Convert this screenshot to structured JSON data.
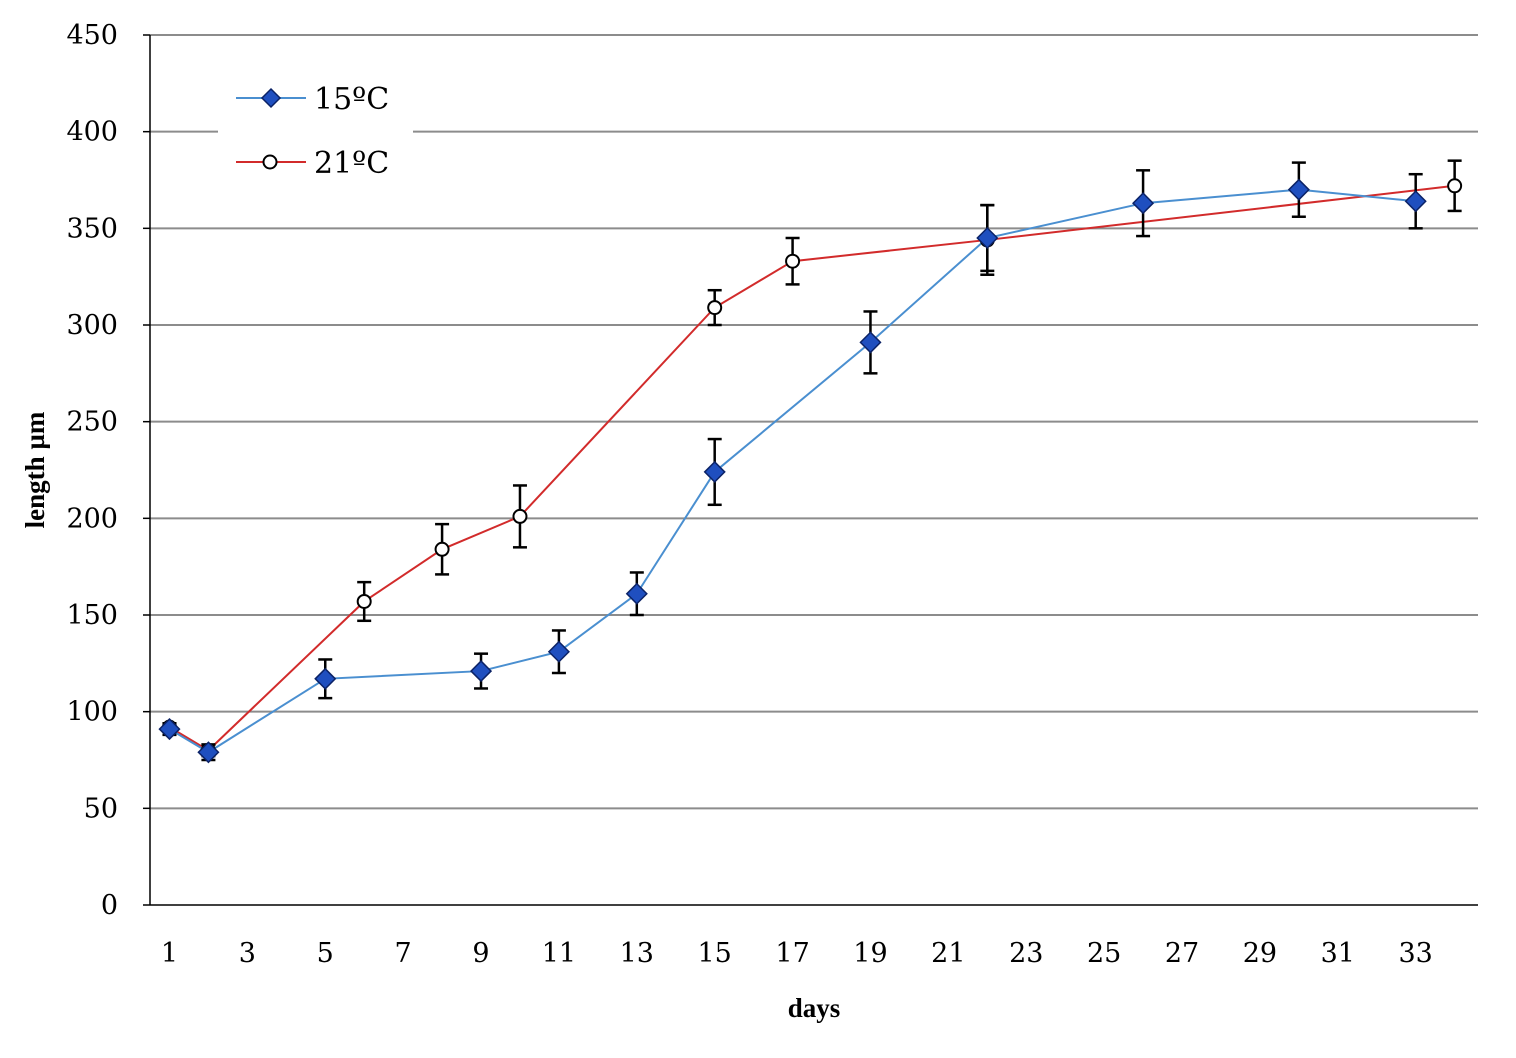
{
  "chart_data": {
    "type": "line",
    "title": "",
    "xlabel": "days",
    "ylabel": "length µm",
    "x_ticks": [
      "1",
      "3",
      "5",
      "7",
      "9",
      "11",
      "13",
      "15",
      "17",
      "19",
      "21",
      "23",
      "25",
      "27",
      "29",
      "31",
      "33"
    ],
    "y_ticks": [
      "0",
      "50",
      "100",
      "150",
      "200",
      "250",
      "300",
      "350",
      "400",
      "450"
    ],
    "xlim": [
      0.5,
      34.6
    ],
    "ylim": [
      0,
      450
    ],
    "grid": "horizontal",
    "legend_position": "top-left",
    "series": [
      {
        "name": "15ºC",
        "color": "#4a8fd0",
        "marker": "diamond",
        "marker_fill": "#1f4fbf",
        "points": [
          {
            "x": 1,
            "y": 91,
            "err": 3
          },
          {
            "x": 2,
            "y": 79,
            "err": 4
          },
          {
            "x": 5,
            "y": 117,
            "err": 10
          },
          {
            "x": 9,
            "y": 121,
            "err": 9
          },
          {
            "x": 11,
            "y": 131,
            "err": 11
          },
          {
            "x": 13,
            "y": 161,
            "err": 11
          },
          {
            "x": 15,
            "y": 224,
            "err": 17
          },
          {
            "x": 19,
            "y": 291,
            "err": 16
          },
          {
            "x": 22,
            "y": 345,
            "err": 17
          },
          {
            "x": 26,
            "y": 363,
            "err": 17
          },
          {
            "x": 30,
            "y": 370,
            "err": 14
          },
          {
            "x": 33,
            "y": 364,
            "err": 14
          }
        ]
      },
      {
        "name": "21ºC",
        "color": "#d22b2b",
        "marker": "circle",
        "marker_fill": "#ffffff",
        "points": [
          {
            "x": 1,
            "y": 92,
            "err": 2
          },
          {
            "x": 2,
            "y": 80,
            "err": 3
          },
          {
            "x": 6,
            "y": 157,
            "err": 10
          },
          {
            "x": 8,
            "y": 184,
            "err": 13
          },
          {
            "x": 10,
            "y": 201,
            "err": 16
          },
          {
            "x": 15,
            "y": 309,
            "err": 9
          },
          {
            "x": 17,
            "y": 333,
            "err": 12
          },
          {
            "x": 22,
            "y": 344,
            "err": 18
          },
          {
            "x": 34,
            "y": 372,
            "err": 13
          }
        ]
      }
    ]
  }
}
